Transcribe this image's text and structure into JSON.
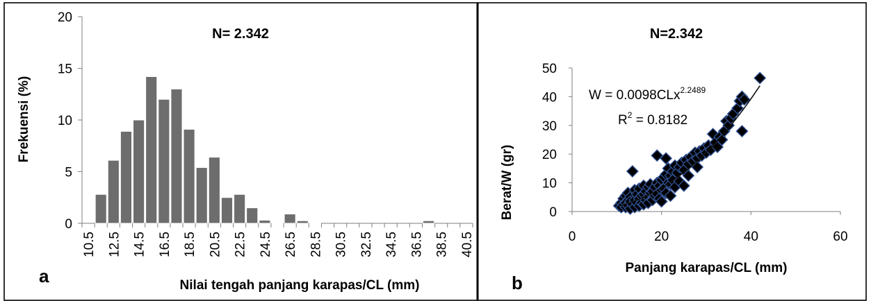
{
  "chart_data": [
    {
      "panel_label": "a",
      "type": "bar",
      "title": "N= 2.342",
      "xlabel": "Nilai tengah panjang karapas/CL (mm)",
      "ylabel": "Frekuensi (%)",
      "ylim": [
        0,
        20
      ],
      "yticks": [
        0,
        5,
        10,
        15,
        20
      ],
      "x_tick_labels": [
        "10.5",
        "12.5",
        "14.5",
        "16.5",
        "18.5",
        "20.5",
        "22.5",
        "24.5",
        "26.5",
        "28.5",
        "30.5",
        "32.5",
        "34.5",
        "36.5",
        "38.5",
        "40.5"
      ],
      "categories": [
        "10.5",
        "11.5",
        "12.5",
        "13.5",
        "14.5",
        "15.5",
        "16.5",
        "17.5",
        "18.5",
        "19.5",
        "20.5",
        "21.5",
        "22.5",
        "23.5",
        "24.5",
        "25.5",
        "26.5",
        "27.5",
        "28.5",
        "29.5",
        "30.5",
        "31.5",
        "32.5",
        "33.5",
        "34.5",
        "35.5",
        "36.5",
        "37.5",
        "38.5",
        "39.5",
        "40.5"
      ],
      "values": [
        0,
        2.8,
        6.1,
        8.9,
        10.0,
        14.2,
        12.0,
        13.0,
        9.1,
        5.4,
        6.4,
        2.5,
        2.8,
        1.5,
        0.3,
        0.05,
        0.9,
        0.25,
        0.05,
        0,
        0,
        0,
        0,
        0,
        0,
        0,
        0,
        0.25,
        0,
        0,
        0
      ],
      "color": "#6d6d6d"
    },
    {
      "panel_label": "b",
      "type": "scatter",
      "title": "N=2.342",
      "xlabel": "Panjang karapas/CL (mm)",
      "ylabel": "Berat/W (gr)",
      "xlim": [
        0,
        60
      ],
      "ylim": [
        0,
        50
      ],
      "xticks": [
        0,
        20,
        40,
        60
      ],
      "yticks": [
        0,
        10,
        20,
        30,
        40,
        50
      ],
      "equation": {
        "prefix": "W = 0.0098CLx",
        "exponent": "2.2489"
      },
      "r_squared": {
        "prefix": "R",
        "sup": "2",
        "suffix": " = 0.8182"
      },
      "trendline": {
        "a": 0.0098,
        "b": 2.2489,
        "x_from": 10.5,
        "x_to": 42
      },
      "points": [
        [
          10.5,
          2.0
        ],
        [
          11,
          3.0
        ],
        [
          11,
          1.5
        ],
        [
          11.5,
          4.5
        ],
        [
          11.5,
          2.5
        ],
        [
          12,
          5.5
        ],
        [
          12,
          3.0
        ],
        [
          12,
          1.5
        ],
        [
          12.5,
          6.5
        ],
        [
          12.5,
          2.0
        ],
        [
          13,
          5.0
        ],
        [
          13,
          3.5
        ],
        [
          13,
          1.0
        ],
        [
          13.5,
          14.0
        ],
        [
          13.5,
          2.5
        ],
        [
          14,
          7.5
        ],
        [
          14,
          4.0
        ],
        [
          14,
          1.5
        ],
        [
          14.5,
          6.0
        ],
        [
          14.5,
          3.0
        ],
        [
          15,
          8.0
        ],
        [
          15,
          4.5
        ],
        [
          15,
          2.0
        ],
        [
          15.5,
          5.5
        ],
        [
          15.5,
          3.0
        ],
        [
          16,
          9.0
        ],
        [
          16,
          6.0
        ],
        [
          16,
          2.5
        ],
        [
          16.5,
          7.0
        ],
        [
          16.5,
          4.0
        ],
        [
          17,
          8.5
        ],
        [
          17,
          5.0
        ],
        [
          17,
          3.0
        ],
        [
          17.5,
          6.5
        ],
        [
          17.5,
          9.5
        ],
        [
          18,
          7.0
        ],
        [
          18,
          4.0
        ],
        [
          18.5,
          8.5
        ],
        [
          18.5,
          5.5
        ],
        [
          19,
          19.5
        ],
        [
          19,
          10.0
        ],
        [
          19,
          6.0
        ],
        [
          19.5,
          9.0
        ],
        [
          19.5,
          4.5
        ],
        [
          20,
          11.0
        ],
        [
          20,
          7.5
        ],
        [
          20,
          3.5
        ],
        [
          20.5,
          12.0
        ],
        [
          20.5,
          8.0
        ],
        [
          21,
          18.5
        ],
        [
          21,
          13.0
        ],
        [
          21,
          6.5
        ],
        [
          21.5,
          10.0
        ],
        [
          21.5,
          15.0
        ],
        [
          22,
          9.5
        ],
        [
          22,
          12.5
        ],
        [
          22,
          5.5
        ],
        [
          22.5,
          14.0
        ],
        [
          22.5,
          11.0
        ],
        [
          23,
          16.0
        ],
        [
          23,
          8.5
        ],
        [
          23.5,
          13.5
        ],
        [
          24,
          15.5
        ],
        [
          24,
          10.5
        ],
        [
          24.5,
          17.0
        ],
        [
          25,
          14.5
        ],
        [
          25,
          9.0
        ],
        [
          25.5,
          18.0
        ],
        [
          26,
          16.5
        ],
        [
          26,
          12.5
        ],
        [
          26.5,
          19.0
        ],
        [
          27,
          17.5
        ],
        [
          27.5,
          20.5
        ],
        [
          28,
          18.5
        ],
        [
          28,
          15.5
        ],
        [
          28.5,
          21.0
        ],
        [
          29,
          19.5
        ],
        [
          29.5,
          22.0
        ],
        [
          30,
          20.5
        ],
        [
          30.5,
          23.0
        ],
        [
          31,
          21.5
        ],
        [
          31.5,
          27.0
        ],
        [
          32,
          24.0
        ],
        [
          32.5,
          22.5
        ],
        [
          33,
          26.0
        ],
        [
          33.5,
          25.0
        ],
        [
          34,
          28.0
        ],
        [
          34.5,
          31.5
        ],
        [
          35,
          30.0
        ],
        [
          35.5,
          32.5
        ],
        [
          36,
          34.0
        ],
        [
          37,
          36.0
        ],
        [
          37.5,
          38.5
        ],
        [
          38,
          28.0
        ],
        [
          38,
          40.0
        ],
        [
          38.5,
          39.0
        ],
        [
          42,
          46.5
        ]
      ],
      "marker_color": "#1a2a4a"
    }
  ]
}
